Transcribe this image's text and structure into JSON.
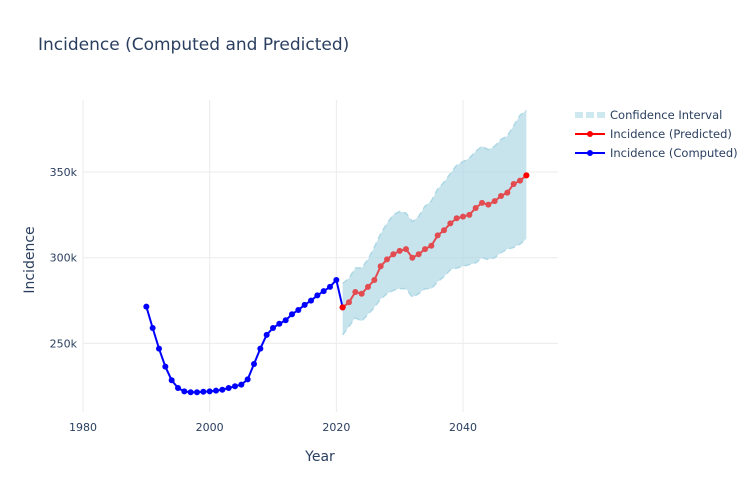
{
  "chart_data": {
    "type": "line",
    "title": "Incidence (Computed and Predicted)",
    "xlabel": "Year",
    "ylabel": "Incidence",
    "xlim": [
      1980,
      2055
    ],
    "ylim": [
      210000,
      392000
    ],
    "x_ticks": [
      1980,
      2000,
      2020,
      2040
    ],
    "x_tick_labels": [
      "1980",
      "2000",
      "2020",
      "2040"
    ],
    "y_ticks": [
      250000,
      300000,
      350000
    ],
    "y_tick_labels": [
      "250k",
      "300k",
      "350k"
    ],
    "grid": true,
    "legend_position": "top-right",
    "series": [
      {
        "name": "Confidence Interval",
        "kind": "band",
        "color": "#add8e6",
        "x": [
          2021,
          2022,
          2023,
          2024,
          2025,
          2026,
          2027,
          2028,
          2029,
          2030,
          2031,
          2032,
          2033,
          2034,
          2035,
          2036,
          2037,
          2038,
          2039,
          2040,
          2041,
          2042,
          2043,
          2044,
          2045,
          2046,
          2047,
          2048,
          2049,
          2050
        ],
        "upper": [
          285000,
          288000,
          294000,
          294000,
          299000,
          306000,
          314000,
          320000,
          325000,
          327000,
          326000,
          321000,
          324000,
          330000,
          333000,
          340000,
          344000,
          349000,
          354000,
          356000,
          358000,
          362000,
          365000,
          363000,
          365000,
          369000,
          371000,
          377000,
          383000,
          386000
        ],
        "lower": [
          255000,
          260000,
          265000,
          263000,
          267000,
          271000,
          276000,
          279000,
          281000,
          282000,
          282000,
          277000,
          279000,
          282000,
          282000,
          286000,
          289000,
          293000,
          294000,
          295000,
          296000,
          297000,
          300000,
          299000,
          300000,
          303000,
          305000,
          306000,
          308000,
          311000
        ]
      },
      {
        "name": "Incidence (Predicted)",
        "kind": "line",
        "color": "#ff0000",
        "x": [
          2021,
          2022,
          2023,
          2024,
          2025,
          2026,
          2027,
          2028,
          2029,
          2030,
          2031,
          2032,
          2033,
          2034,
          2035,
          2036,
          2037,
          2038,
          2039,
          2040,
          2041,
          2042,
          2043,
          2044,
          2045,
          2046,
          2047,
          2048,
          2049,
          2050
        ],
        "y": [
          271000,
          274000,
          280000,
          279000,
          283000,
          287000,
          295000,
          299000,
          302000,
          304000,
          305000,
          300000,
          302000,
          305000,
          307000,
          313000,
          316000,
          320000,
          323000,
          324000,
          325000,
          329000,
          332000,
          331000,
          333000,
          336000,
          338000,
          343000,
          345000,
          348000
        ]
      },
      {
        "name": "Incidence (Computed)",
        "kind": "line",
        "color": "#0000ff",
        "x": [
          1990,
          1991,
          1992,
          1993,
          1994,
          1995,
          1996,
          1997,
          1998,
          1999,
          2000,
          2001,
          2002,
          2003,
          2004,
          2005,
          2006,
          2007,
          2008,
          2009,
          2010,
          2011,
          2012,
          2013,
          2014,
          2015,
          2016,
          2017,
          2018,
          2019,
          2020,
          2021
        ],
        "y": [
          271500,
          259000,
          247000,
          236500,
          228500,
          224000,
          222000,
          221500,
          221500,
          221800,
          222000,
          222500,
          223000,
          224000,
          225000,
          226000,
          229000,
          238000,
          247000,
          255000,
          259000,
          261500,
          263500,
          267000,
          269500,
          272500,
          275000,
          278000,
          280500,
          283000,
          287000,
          271000
        ]
      }
    ]
  }
}
